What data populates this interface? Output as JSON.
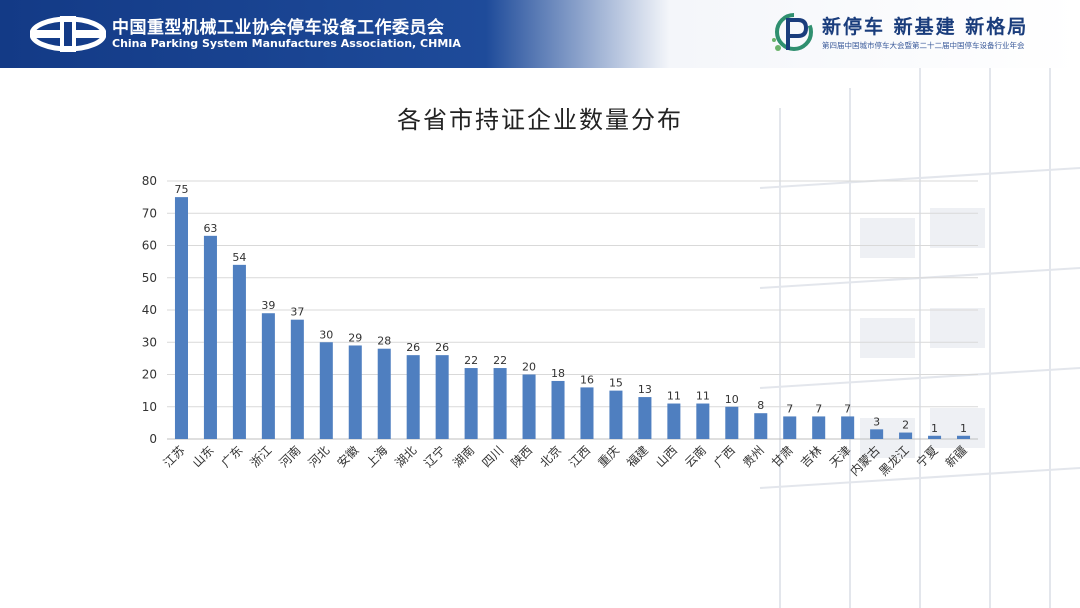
{
  "header": {
    "org_name_cn": "中国重型机械工业协会停车设备工作委员会",
    "org_name_en": "China Parking System Manufactures Association, CHMIA",
    "slogan": "新停车  新基建  新格局",
    "event_name": "第四届中国城市停车大会暨第二十二届中国停车设备行业年会"
  },
  "colors": {
    "bar": "#4f7fc0",
    "header_blue": "#133a86",
    "grid": "#d9d9d9"
  },
  "chart_data": {
    "type": "bar",
    "title": "各省市持证企业数量分布",
    "xlabel": "",
    "ylabel": "",
    "ylim": [
      0,
      80
    ],
    "yticks": [
      0,
      10,
      20,
      30,
      40,
      50,
      60,
      70,
      80
    ],
    "grid": true,
    "legend": "none",
    "data_labels": true,
    "categories": [
      "江苏",
      "山东",
      "广东",
      "浙江",
      "河南",
      "河北",
      "安徽",
      "上海",
      "湖北",
      "辽宁",
      "湖南",
      "四川",
      "陕西",
      "北京",
      "江西",
      "重庆",
      "福建",
      "山西",
      "云南",
      "广西",
      "贵州",
      "甘肃",
      "吉林",
      "天津",
      "内蒙古",
      "黑龙江",
      "宁夏",
      "新疆"
    ],
    "values": [
      75,
      63,
      54,
      39,
      37,
      30,
      29,
      28,
      26,
      26,
      22,
      22,
      20,
      18,
      16,
      15,
      13,
      11,
      11,
      10,
      8,
      7,
      7,
      7,
      3,
      2,
      1,
      1
    ]
  }
}
